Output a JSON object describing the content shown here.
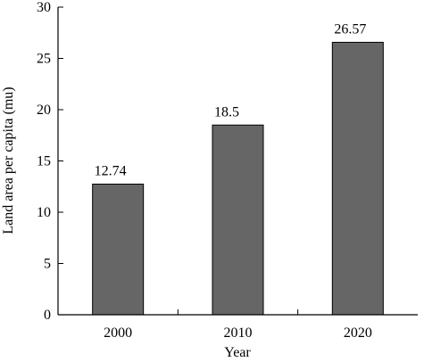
{
  "chart_data": {
    "type": "bar",
    "categories": [
      "2000",
      "2010",
      "2020"
    ],
    "values": [
      12.74,
      18.5,
      26.57
    ],
    "data_labels": [
      "12.74",
      "18.5",
      "26.57"
    ],
    "title": "",
    "xlabel": "Year",
    "ylabel": "Land area per capita (mu)",
    "ylim": [
      0,
      30
    ],
    "yticks": [
      0,
      5,
      10,
      15,
      20,
      25,
      30
    ],
    "grid": false,
    "bar_color": "#666666"
  }
}
